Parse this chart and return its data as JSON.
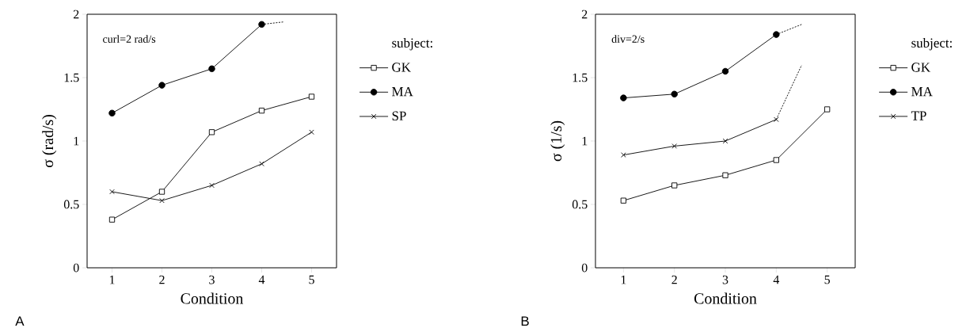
{
  "chart_data": [
    {
      "type": "line",
      "xlabel": "Condition",
      "ylabel": "σ (rad/s)",
      "legend_title": "subject:",
      "legend": "right",
      "x": [
        1,
        2,
        3,
        4,
        5
      ],
      "xlim": [
        0.5,
        5.5
      ],
      "xticks": [
        1,
        2,
        3,
        4,
        5
      ],
      "ylim": [
        0,
        2
      ],
      "yticks": [
        0,
        0.5,
        1,
        1.5,
        2
      ],
      "annotations": [
        "curl=2 rad/s",
        "A"
      ],
      "series": [
        {
          "name": "GK",
          "color": "#000000",
          "marker": "square",
          "values": [
            0.38,
            0.6,
            1.07,
            1.24,
            1.35
          ]
        },
        {
          "name": "MA",
          "color": "#000000",
          "marker": "circle",
          "values": [
            1.22,
            1.44,
            1.57,
            1.92,
            null
          ]
        },
        {
          "name": "SP",
          "color": "#000000",
          "marker": "cross",
          "values": [
            0.6,
            0.53,
            0.65,
            0.82,
            1.07
          ]
        },
        {
          "color": "#000000",
          "marker": "none",
          "line_style": "dotted",
          "x": [
            4,
            4.45
          ],
          "values": [
            1.92,
            1.94
          ]
        }
      ]
    },
    {
      "type": "line",
      "xlabel": "Condition",
      "ylabel": "σ (1/s)",
      "legend_title": "subject:",
      "legend": "right",
      "x": [
        1,
        2,
        3,
        4,
        5
      ],
      "xlim": [
        0.45,
        5.55
      ],
      "xticks": [
        1,
        2,
        3,
        4,
        5
      ],
      "ylim": [
        0,
        2
      ],
      "yticks": [
        0,
        0.5,
        1,
        1.5,
        2
      ],
      "annotations": [
        "div=2/s",
        "B"
      ],
      "series": [
        {
          "name": "GK",
          "color": "#000000",
          "marker": "square",
          "values": [
            0.53,
            0.65,
            0.73,
            0.85,
            1.25
          ]
        },
        {
          "name": "MA",
          "color": "#000000",
          "marker": "circle",
          "values": [
            1.34,
            1.37,
            1.55,
            1.84,
            null
          ]
        },
        {
          "name": "TP",
          "color": "#000000",
          "marker": "cross",
          "values": [
            0.89,
            0.96,
            1.0,
            1.17,
            null
          ]
        },
        {
          "color": "#000000",
          "marker": "none",
          "line_style": "dotted",
          "x": [
            4,
            4.5
          ],
          "values": [
            1.84,
            1.92
          ]
        },
        {
          "color": "#000000",
          "marker": "none",
          "line_style": "dotted",
          "x": [
            4,
            4.5
          ],
          "values": [
            1.17,
            1.6
          ]
        }
      ]
    }
  ]
}
